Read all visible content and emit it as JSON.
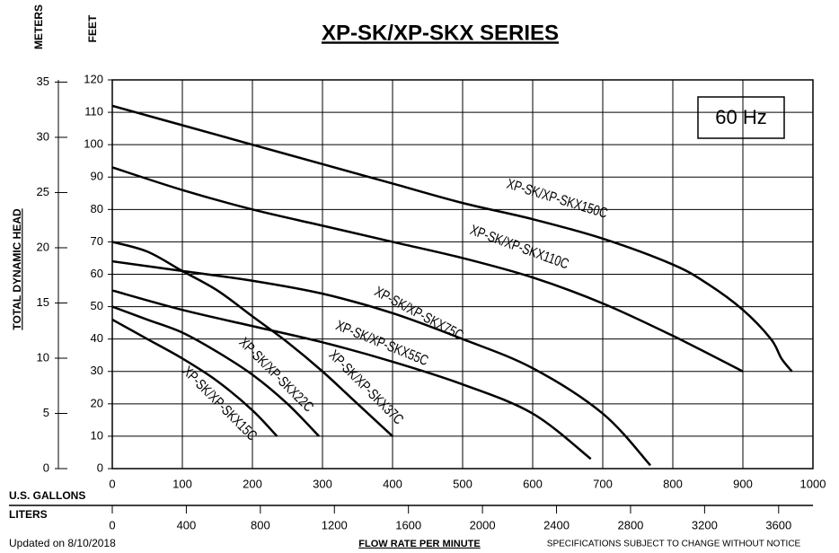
{
  "chart_data": {
    "type": "line",
    "title": "XP-SK/XP-SKX SERIES",
    "annotation": "60 Hz",
    "xlabel": "FLOW RATE PER MINUTE",
    "x_unit_label": "U.S. GALLONS",
    "x2_unit_label": "LITERS",
    "ylabel": "TOTAL DYNAMIC HEAD",
    "y_unit_label": "FEET",
    "y2_unit_label": "METERS",
    "footer_left": "Updated on 8/10/2018",
    "footer_right": "SPECIFICATIONS SUBJECT TO CHANGE WITHOUT NOTICE",
    "xlim": [
      0,
      1000
    ],
    "xticks": [
      0,
      100,
      200,
      300,
      400,
      500,
      600,
      700,
      800,
      900,
      1000
    ],
    "x2lim": [
      0,
      3785.4
    ],
    "x2ticks": [
      0,
      400,
      800,
      1200,
      1600,
      2000,
      2400,
      2800,
      3200,
      3600
    ],
    "ylim": [
      0,
      120
    ],
    "yticks": [
      0,
      10,
      20,
      30,
      40,
      50,
      60,
      70,
      80,
      90,
      100,
      110,
      120
    ],
    "y2lim": [
      0,
      35.2
    ],
    "y2ticks": [
      0,
      5,
      10,
      15,
      20,
      25,
      30,
      35
    ],
    "grid": true,
    "series": [
      {
        "name": "XP-SK/XP-SKX150C",
        "color": "#000000",
        "x": [
          0,
          100,
          200,
          300,
          400,
          500,
          600,
          700,
          800,
          850,
          900,
          940,
          955,
          970
        ],
        "values": [
          112,
          106,
          100,
          94,
          88,
          82,
          77,
          71,
          63,
          57,
          49,
          40,
          34,
          30
        ]
      },
      {
        "name": "XP-SK/XP-SKX110C",
        "color": "#000000",
        "x": [
          0,
          100,
          200,
          300,
          400,
          500,
          600,
          700,
          800,
          900
        ],
        "values": [
          93,
          86,
          80,
          75,
          70,
          65,
          59,
          51,
          41,
          30
        ]
      },
      {
        "name": "XP-SK/XP-SKX75C",
        "color": "#000000",
        "x": [
          0,
          100,
          200,
          300,
          400,
          500,
          600,
          700,
          768
        ],
        "values": [
          64,
          61,
          58,
          54,
          48,
          40,
          31,
          17,
          1
        ]
      },
      {
        "name": "XP-SK/XP-SKX55C",
        "color": "#000000",
        "x": [
          0,
          100,
          200,
          300,
          400,
          500,
          600,
          683
        ],
        "values": [
          55,
          49,
          44,
          39,
          33,
          26,
          17,
          3
        ]
      },
      {
        "name": "XP-SK/XP-SKX37C",
        "color": "#000000",
        "x": [
          0,
          50,
          100,
          150,
          200,
          250,
          300,
          350,
          400
        ],
        "values": [
          70,
          67,
          61,
          55,
          47,
          39,
          30,
          20,
          10
        ]
      },
      {
        "name": "XP-SK/XP-SKX22C",
        "color": "#000000",
        "x": [
          0,
          50,
          100,
          150,
          200,
          250,
          295
        ],
        "values": [
          50,
          46,
          42,
          36,
          29,
          20,
          10
        ]
      },
      {
        "name": "XP-SK/XP-SKX15C",
        "color": "#000000",
        "x": [
          0,
          50,
          100,
          150,
          200,
          235
        ],
        "values": [
          46,
          40,
          34,
          27,
          18,
          10
        ]
      }
    ]
  }
}
